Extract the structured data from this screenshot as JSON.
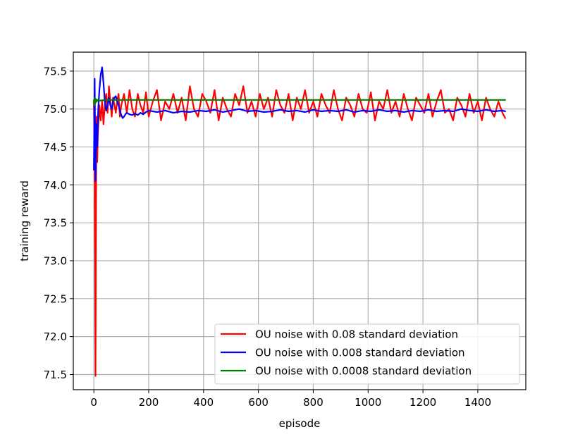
{
  "chart_data": {
    "type": "line",
    "title": "",
    "xlabel": "episode",
    "ylabel": "training reward",
    "xlim": [
      -75,
      1575
    ],
    "ylim": [
      71.3,
      75.75
    ],
    "xticks": [
      0,
      200,
      400,
      600,
      800,
      1000,
      1200,
      1400
    ],
    "yticks": [
      71.5,
      72.0,
      72.5,
      73.0,
      73.5,
      74.0,
      74.5,
      75.0,
      75.5
    ],
    "grid": true,
    "legend_position": "lower-right",
    "series": [
      {
        "name": "OU noise with 0.08 standard deviation",
        "color": "#ff0000",
        "x": [
          0,
          3,
          6,
          9,
          12,
          15,
          20,
          25,
          30,
          35,
          40,
          45,
          50,
          55,
          60,
          65,
          70,
          75,
          80,
          85,
          90,
          95,
          100,
          110,
          120,
          130,
          140,
          150,
          160,
          170,
          180,
          190,
          200,
          215,
          230,
          245,
          260,
          275,
          290,
          305,
          320,
          335,
          350,
          365,
          380,
          395,
          410,
          425,
          440,
          455,
          470,
          485,
          500,
          515,
          530,
          545,
          560,
          575,
          590,
          605,
          620,
          635,
          650,
          665,
          680,
          695,
          710,
          725,
          740,
          755,
          770,
          785,
          800,
          815,
          830,
          845,
          860,
          875,
          890,
          905,
          920,
          935,
          950,
          965,
          980,
          995,
          1010,
          1025,
          1040,
          1055,
          1070,
          1085,
          1100,
          1115,
          1130,
          1145,
          1160,
          1175,
          1190,
          1205,
          1220,
          1235,
          1250,
          1265,
          1280,
          1295,
          1310,
          1325,
          1340,
          1355,
          1370,
          1385,
          1400,
          1415,
          1430,
          1445,
          1460,
          1475,
          1490,
          1500
        ],
        "values": [
          75.1,
          74.2,
          71.48,
          74.9,
          74.3,
          74.7,
          75.05,
          74.85,
          75.1,
          74.8,
          75.05,
          75.2,
          74.95,
          75.3,
          75.1,
          74.9,
          75.15,
          75.05,
          74.95,
          75.1,
          75.2,
          74.9,
          75.05,
          75.2,
          74.95,
          75.25,
          75.0,
          74.9,
          75.2,
          75.05,
          74.95,
          75.22,
          74.9,
          75.1,
          75.25,
          74.85,
          75.1,
          75.0,
          75.2,
          74.95,
          75.15,
          74.85,
          75.3,
          75.0,
          74.9,
          75.2,
          75.1,
          74.95,
          75.25,
          74.85,
          75.15,
          75.0,
          74.9,
          75.2,
          75.05,
          75.3,
          74.95,
          75.1,
          74.9,
          75.2,
          75.0,
          75.15,
          74.9,
          75.25,
          75.05,
          74.95,
          75.2,
          74.85,
          75.15,
          75.0,
          75.25,
          74.95,
          75.1,
          74.9,
          75.2,
          75.05,
          74.95,
          75.25,
          75.0,
          74.85,
          75.15,
          75.05,
          74.9,
          75.2,
          75.0,
          74.95,
          75.22,
          74.85,
          75.1,
          75.0,
          75.25,
          74.95,
          75.1,
          74.9,
          75.2,
          75.0,
          74.85,
          75.15,
          75.05,
          74.95,
          75.2,
          74.9,
          75.1,
          75.25,
          74.95,
          75.0,
          74.85,
          75.15,
          75.05,
          74.9,
          75.2,
          74.95,
          75.1,
          74.85,
          75.15,
          75.0,
          74.9,
          75.1,
          74.95,
          74.88
        ]
      },
      {
        "name": "OU noise with 0.008 standard deviation",
        "color": "#0000ff",
        "x": [
          0,
          3,
          6,
          9,
          12,
          16,
          20,
          25,
          30,
          35,
          40,
          45,
          50,
          55,
          60,
          65,
          70,
          75,
          80,
          85,
          90,
          95,
          100,
          105,
          110,
          115,
          120,
          130,
          140,
          150,
          160,
          170,
          180,
          190,
          200,
          230,
          260,
          290,
          320,
          350,
          380,
          410,
          440,
          470,
          500,
          530,
          560,
          590,
          620,
          650,
          680,
          710,
          740,
          770,
          800,
          830,
          860,
          890,
          920,
          950,
          980,
          1010,
          1040,
          1070,
          1100,
          1130,
          1160,
          1190,
          1220,
          1250,
          1280,
          1310,
          1340,
          1370,
          1400,
          1430,
          1460,
          1490,
          1500
        ],
        "values": [
          74.2,
          75.4,
          74.05,
          74.8,
          74.5,
          75.0,
          75.25,
          75.45,
          75.55,
          75.35,
          75.1,
          74.98,
          75.05,
          75.15,
          75.05,
          75.0,
          75.1,
          75.15,
          75.17,
          75.1,
          75.05,
          74.98,
          74.92,
          74.88,
          74.9,
          74.93,
          74.95,
          74.93,
          74.92,
          74.94,
          74.92,
          74.95,
          74.93,
          74.96,
          74.98,
          74.96,
          74.98,
          74.95,
          74.97,
          74.96,
          74.98,
          74.97,
          74.99,
          74.96,
          74.98,
          75.0,
          74.97,
          74.98,
          74.96,
          74.97,
          74.99,
          74.97,
          74.98,
          74.96,
          74.99,
          74.97,
          74.98,
          74.97,
          74.99,
          74.96,
          74.98,
          74.97,
          74.99,
          74.97,
          74.98,
          74.96,
          74.98,
          74.97,
          74.99,
          74.97,
          74.98,
          74.97,
          75.0,
          74.98,
          74.97,
          74.99,
          74.97,
          74.98,
          74.97
        ]
      },
      {
        "name": "OU noise with 0.0008 standard deviation",
        "color": "#008000",
        "x": [
          0,
          2,
          4,
          6,
          8,
          10,
          14,
          20,
          40,
          80,
          150,
          300,
          600,
          900,
          1200,
          1500
        ],
        "values": [
          75.12,
          75.05,
          75.15,
          75.08,
          75.13,
          75.1,
          75.12,
          75.11,
          75.12,
          75.12,
          75.12,
          75.12,
          75.12,
          75.12,
          75.12,
          75.12
        ]
      }
    ]
  }
}
